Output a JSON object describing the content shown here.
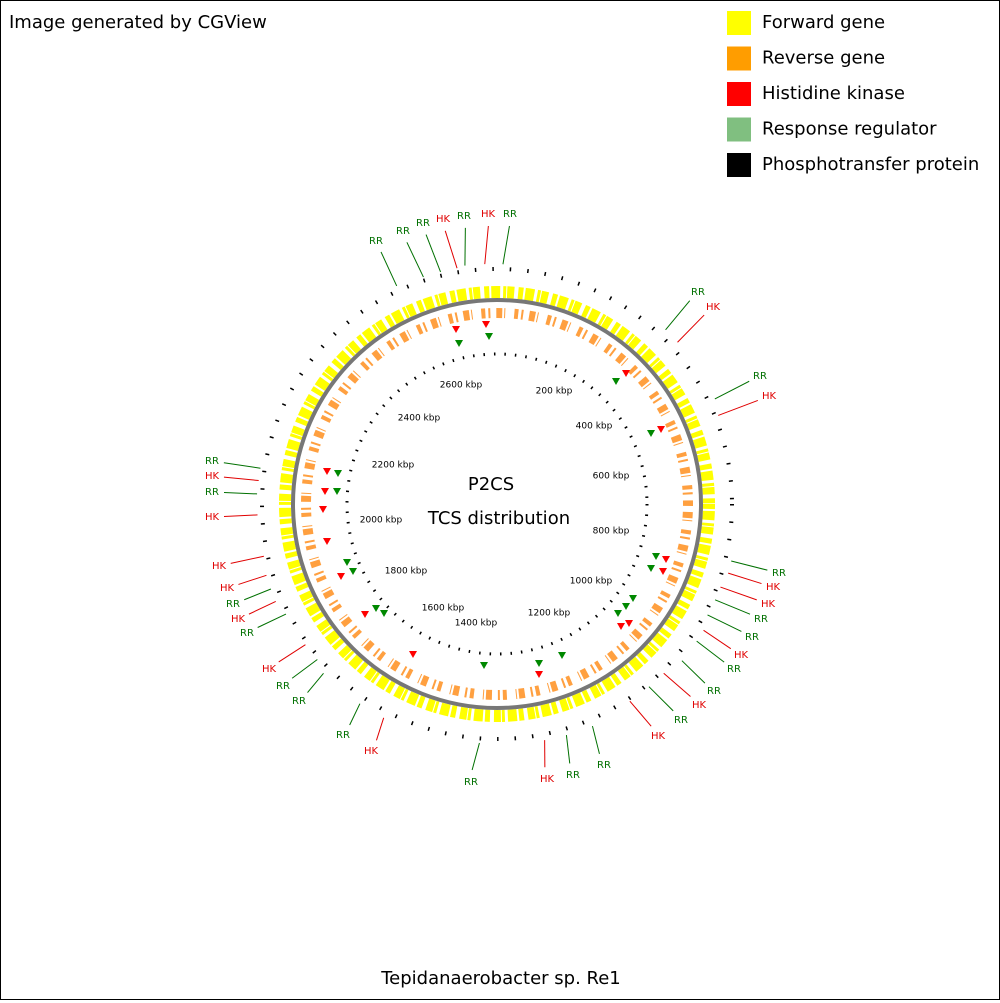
{
  "header": {
    "note": "Image generated by CGView"
  },
  "legend": [
    {
      "label": "Forward gene",
      "color": "#ffff00"
    },
    {
      "label": "Reverse gene",
      "color": "#ff9d00"
    },
    {
      "label": "Histidine kinase",
      "color": "#ff0000"
    },
    {
      "label": "Response regulator",
      "color": "#80bf80"
    },
    {
      "label": "Phosphotransfer protein",
      "color": "#000000"
    }
  ],
  "map": {
    "title": "P2CS",
    "subtitle": "TCS distribution",
    "ticks": [
      "200 kbp",
      "400 kbp",
      "600 kbp",
      "800 kbp",
      "1000 kbp",
      "1200 kbp",
      "1400 kbp",
      "1600 kbp",
      "1800 kbp",
      "2000 kbp",
      "2200 kbp",
      "2400 kbp",
      "2600 kbp"
    ],
    "feature_labels": [
      "RR",
      "RR",
      "RR",
      "HK",
      "RR",
      "HK",
      "RR",
      "RR",
      "HK",
      "RR",
      "HK",
      "RR",
      "HK",
      "HK",
      "RR",
      "RR",
      "HK",
      "RR",
      "RR",
      "HK",
      "RR",
      "HK",
      "RR",
      "RR",
      "HK",
      "RR",
      "HK",
      "RR",
      "RR",
      "RR",
      "HK",
      "RR",
      "HK",
      "RR",
      "HK",
      "HK",
      "HK",
      "RR",
      "HK",
      "RR"
    ]
  },
  "footer": {
    "organism": "Tepidanaerobacter sp. Re1"
  }
}
